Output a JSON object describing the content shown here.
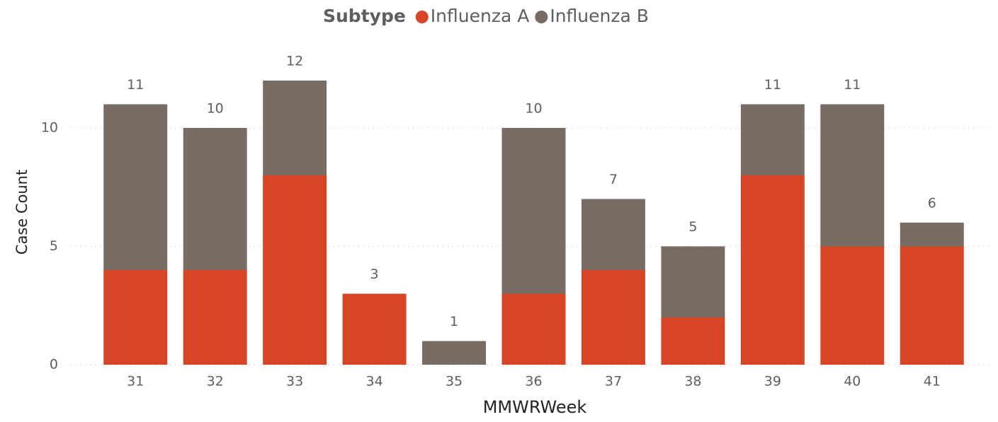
{
  "chart_data": {
    "type": "stacked_bar",
    "legend_title": "Subtype",
    "x_label": "MMWRWeek",
    "y_label": "Case Count",
    "categories": [
      "31",
      "32",
      "33",
      "34",
      "35",
      "36",
      "37",
      "38",
      "39",
      "40",
      "41"
    ],
    "series": [
      {
        "name": "Influenza A",
        "color": "#d64526",
        "values": [
          4,
          4,
          8,
          3,
          0,
          3,
          4,
          2,
          8,
          5,
          5
        ]
      },
      {
        "name": "Influenza B",
        "color": "#786d64",
        "values": [
          7,
          6,
          4,
          0,
          1,
          7,
          3,
          3,
          3,
          6,
          1
        ]
      }
    ],
    "total_labels": [
      11,
      10,
      12,
      3,
      1,
      10,
      7,
      5,
      11,
      11,
      6
    ],
    "ylim": [
      0,
      13
    ],
    "yticks": [
      0,
      5,
      10
    ],
    "grid": true,
    "legend_position": "top"
  }
}
